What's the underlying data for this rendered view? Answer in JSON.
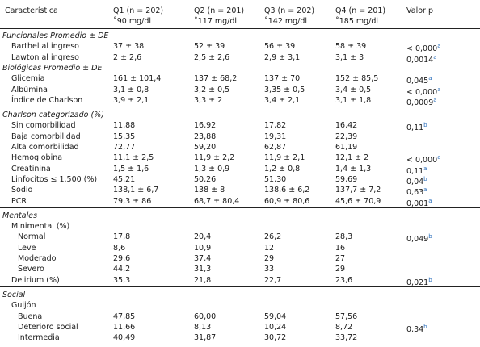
{
  "header": {
    "label": "Característica",
    "columns": [
      {
        "title": "Q1 (n = 202)",
        "subtitle": "˚90 mg/dl"
      },
      {
        "title": "Q2 (n = 201)",
        "subtitle": "˚117 mg/dl"
      },
      {
        "title": "Q3 (n = 202)",
        "subtitle": "˚142 mg/dl"
      },
      {
        "title": "Q4 (n = 201)",
        "subtitle": "˚185 mg/dl"
      }
    ],
    "p": "Valor p"
  },
  "sections": [
    {
      "title": "Funcionales Promedio ± DE",
      "rows": [
        {
          "label": "Barthel al ingreso",
          "values": [
            "37 ± 38",
            "52 ± 39",
            "56 ± 39",
            "58 ± 39"
          ],
          "p": "< 0,000",
          "p_note": "a"
        },
        {
          "label": "Lawton al ingreso",
          "values": [
            "2 ± 2,6",
            "2,5 ± 2,6",
            "2,9 ± 3,1",
            "3,1 ± 3"
          ],
          "p": "0,0014",
          "p_note": "a"
        }
      ]
    },
    {
      "title": "Biológicas Promedio ± DE",
      "rows": [
        {
          "label": "Glicemia",
          "values": [
            "161 ± 101,4",
            "137 ± 68,2",
            "137 ± 70",
            "152 ± 85,5"
          ],
          "p": "0,045",
          "p_note": "a"
        },
        {
          "label": "Albúmina",
          "values": [
            "3,1 ± 0,8",
            "3,2 ± 0,5",
            "3,35 ± 0,5",
            "3,4 ± 0,5"
          ],
          "p": "< 0,000",
          "p_note": "a"
        },
        {
          "label": "Índice de Charlson",
          "values": [
            "3,9 ± 2,1",
            "3,3 ± 2",
            "3,4 ± 2,1",
            "3,1 ± 1,8"
          ],
          "p": "0,0009",
          "p_note": "a"
        }
      ]
    },
    {
      "title": "Charlson categorizado (%)",
      "rows": [
        {
          "label": "Sin comorbilidad",
          "values": [
            "11,88",
            "16,92",
            "17,82",
            "16,42"
          ],
          "p": "0,11",
          "p_note": "b"
        },
        {
          "label": "Baja comorbilidad",
          "values": [
            "15,35",
            "23,88",
            "19,31",
            "22,39"
          ]
        },
        {
          "label": "Alta comorbilidad",
          "values": [
            "72,77",
            "59,20",
            "62,87",
            "61,19"
          ]
        },
        {
          "label": "Hemoglobina",
          "values": [
            "11,1 ± 2,5",
            "11,9 ± 2,2",
            "11,9 ± 2,1",
            "12,1 ± 2"
          ],
          "p": "< 0,000",
          "p_note": "a"
        },
        {
          "label": "Creatinina",
          "values": [
            "1,5 ± 1,6",
            "1,3 ± 0,9",
            "1,2 ± 0,8",
            "1,4 ± 1,3"
          ],
          "p": "0,11",
          "p_note": "a"
        },
        {
          "label": "Linfocitos ≤ 1.500 (%)",
          "values": [
            "45,21",
            "50,26",
            "51,30",
            "59,69"
          ],
          "p": "0,04",
          "p_note": "b"
        },
        {
          "label": "Sodio",
          "values": [
            "138,1 ± 6,7",
            "138 ± 8",
            "138,6 ± 6,2",
            "137,7 ± 7,2"
          ],
          "p": "0,63",
          "p_note": "a"
        },
        {
          "label": "PCR",
          "values": [
            "79,3 ± 86",
            "68,7 ± 80,4",
            "60,9 ± 80,6",
            "45,6 ± 70,9"
          ],
          "p": "0,001",
          "p_note": "a"
        }
      ]
    },
    {
      "title": "Mentales",
      "rows": [
        {
          "label": "Minimental (%)",
          "subrows": [
            {
              "label": "Normal",
              "values": [
                "17,8",
                "20,4",
                "26,2",
                "28,3"
              ],
              "p": "0,049",
              "p_note": "b"
            },
            {
              "label": "Leve",
              "values": [
                "8,6",
                "10,9",
                "12",
                "16"
              ]
            },
            {
              "label": "Moderado",
              "values": [
                "29,6",
                "37,4",
                "29",
                "27"
              ]
            },
            {
              "label": "Severo",
              "values": [
                "44,2",
                "31,3",
                "33",
                "29"
              ]
            }
          ]
        },
        {
          "label": "Delirium (%)",
          "values": [
            "35,3",
            "21,8",
            "22,7",
            "23,6"
          ],
          "p": "0,021",
          "p_note": "b"
        }
      ]
    },
    {
      "title": "Social",
      "rows": [
        {
          "label": "Guijón",
          "subrows": [
            {
              "label": "Buena",
              "values": [
                "47,85",
                "60,00",
                "59,04",
                "57,56"
              ]
            },
            {
              "label": "Deterioro social",
              "values": [
                "11,66",
                "8,13",
                "10,24",
                "8,72"
              ],
              "p": "0,34",
              "p_note": "b"
            },
            {
              "label": "Intermedia",
              "values": [
                "40,49",
                "31,87",
                "30,72",
                "33,72"
              ]
            }
          ]
        }
      ]
    }
  ]
}
